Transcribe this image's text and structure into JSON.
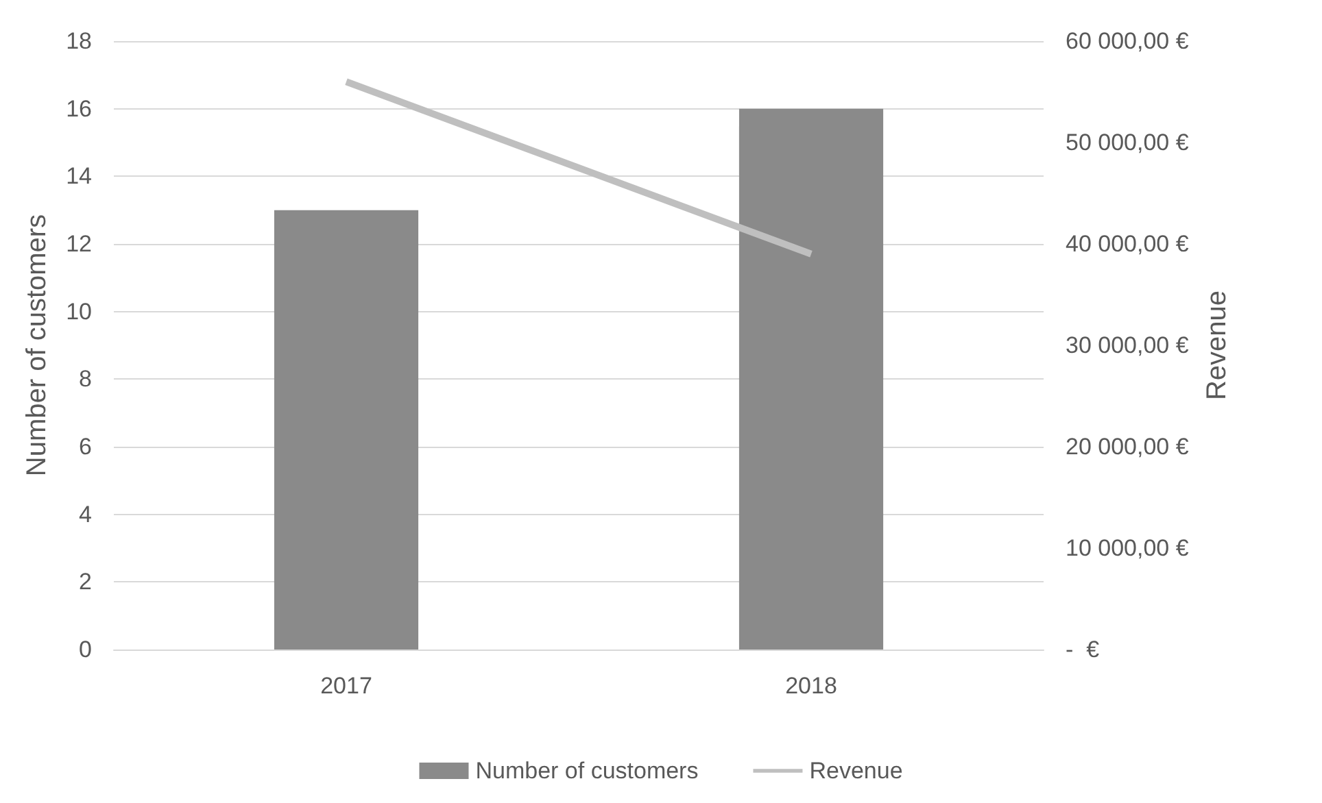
{
  "chart_data": {
    "type": "bar",
    "categories": [
      "2017",
      "2018"
    ],
    "ylabel": "Number of customers",
    "y2label": "Revenue",
    "series": [
      {
        "name": "Number of customers",
        "color": "#8a8a8a",
        "values": [
          13,
          16
        ]
      },
      {
        "name": "Revenue",
        "type": "line",
        "axis": "y2",
        "color": "#bfbfbf",
        "values": [
          56000,
          39000
        ]
      }
    ],
    "ylim": [
      0,
      18
    ],
    "yticks": [
      0,
      2,
      4,
      6,
      8,
      10,
      12,
      14,
      16,
      18
    ],
    "y2lim": [
      0,
      60000
    ],
    "y2ticks": [
      {
        "value": 0,
        "label": "-  €"
      },
      {
        "value": 10000,
        "label": "10 000,00 €"
      },
      {
        "value": 20000,
        "label": "20 000,00 €"
      },
      {
        "value": 30000,
        "label": "30 000,00 €"
      },
      {
        "value": 40000,
        "label": "40 000,00 €"
      },
      {
        "value": 50000,
        "label": "50 000,00 €"
      },
      {
        "value": 60000,
        "label": "60 000,00 €"
      }
    ],
    "grid": "y",
    "legend": "bottom",
    "marker": "none"
  }
}
